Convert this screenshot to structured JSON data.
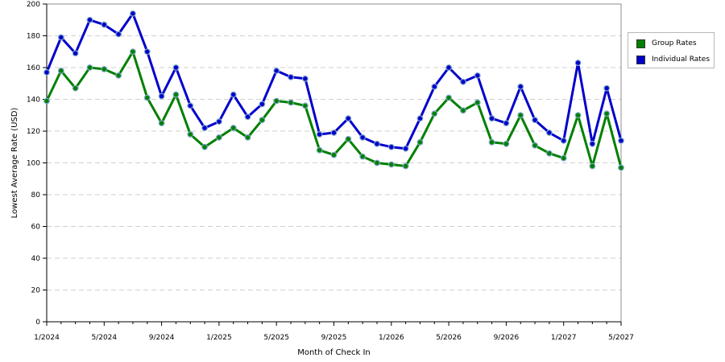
{
  "chart_data": {
    "type": "line",
    "xlabel": "Month of Check In",
    "ylabel": "Lowest Average Rate (USD)",
    "ylim": [
      0,
      200
    ],
    "yticks": [
      0,
      20,
      40,
      60,
      80,
      100,
      120,
      140,
      160,
      180,
      200
    ],
    "x_tick_labels": [
      "1/2024",
      "5/2024",
      "9/2024",
      "1/2025",
      "5/2025",
      "9/2025",
      "1/2026",
      "5/2026",
      "9/2026",
      "1/2027",
      "5/2027"
    ],
    "x": [
      "2024-01",
      "2024-02",
      "2024-03",
      "2024-04",
      "2024-05",
      "2024-06",
      "2024-07",
      "2024-08",
      "2024-09",
      "2024-10",
      "2024-11",
      "2024-12",
      "2025-01",
      "2025-02",
      "2025-03",
      "2025-04",
      "2025-05",
      "2025-06",
      "2025-07",
      "2025-08",
      "2025-09",
      "2025-10",
      "2025-11",
      "2025-12",
      "2026-01",
      "2026-02",
      "2026-03",
      "2026-04",
      "2026-05",
      "2026-06",
      "2026-07",
      "2026-08",
      "2026-09",
      "2026-10",
      "2026-11",
      "2026-12",
      "2027-01",
      "2027-02",
      "2027-03",
      "2027-04",
      "2027-05"
    ],
    "grid": true,
    "legend_position": "top-right",
    "series": [
      {
        "name": "Group Rates",
        "color": "#008000",
        "values": [
          139,
          158,
          147,
          160,
          159,
          155,
          170,
          141,
          125,
          143,
          118,
          110,
          116,
          122,
          116,
          127,
          139,
          138,
          136,
          108,
          105,
          115,
          104,
          100,
          99,
          98,
          113,
          131,
          141,
          133,
          138,
          113,
          112,
          130,
          111,
          106,
          103,
          130,
          98,
          131,
          97
        ]
      },
      {
        "name": "Individual Rates",
        "color": "#0000cc",
        "values": [
          157,
          179,
          169,
          190,
          187,
          181,
          194,
          170,
          142,
          160,
          136,
          122,
          126,
          143,
          129,
          137,
          158,
          154,
          153,
          118,
          119,
          128,
          116,
          112,
          110,
          109,
          128,
          148,
          160,
          151,
          155,
          128,
          125,
          148,
          127,
          119,
          114,
          163,
          112,
          147,
          114
        ]
      }
    ]
  }
}
